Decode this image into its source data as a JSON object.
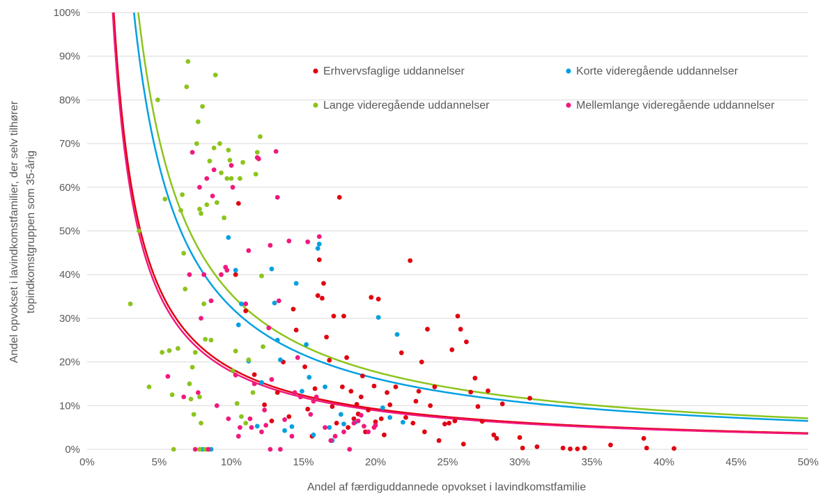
{
  "chart_data": {
    "type": "scatter",
    "xlabel": "Andel af færdiguddannede opvokset i lavindkomstfamilie",
    "ylabel_line1": "Andel opvokset i lavindkomstfamilier, der selv tilhører",
    "ylabel_line2": "topindkomstgruppen som 35-årig",
    "xlim": [
      0,
      0.5
    ],
    "ylim": [
      0,
      1
    ],
    "x_ticks": [
      0,
      0.05,
      0.1,
      0.15,
      0.2,
      0.25,
      0.3,
      0.35,
      0.4,
      0.45,
      0.5
    ],
    "x_tick_labels": [
      "0%",
      "5%",
      "10%",
      "15%",
      "20%",
      "25%",
      "30%",
      "35%",
      "40%",
      "45%",
      "50%"
    ],
    "y_ticks": [
      0,
      0.1,
      0.2,
      0.3,
      0.4,
      0.5,
      0.6,
      0.7,
      0.8,
      0.9,
      1.0
    ],
    "y_tick_labels": [
      "0%",
      "10%",
      "20%",
      "30%",
      "40%",
      "50%",
      "60%",
      "70%",
      "80%",
      "90%",
      "100%"
    ],
    "grid": "horizontal",
    "legend_position": "top-right inside plot",
    "series": [
      {
        "name": "Erhvervsfaglige uddannelser",
        "color": "#E10010",
        "trend_k": 0.0185,
        "points": [
          [
            0.103,
            0.4
          ],
          [
            0.105,
            0.563
          ],
          [
            0.11,
            0.317
          ],
          [
            0.116,
            0.171
          ],
          [
            0.123,
            0.102
          ],
          [
            0.128,
            0.065
          ],
          [
            0.132,
            0.13
          ],
          [
            0.136,
            0.2
          ],
          [
            0.14,
            0.075
          ],
          [
            0.143,
            0.321
          ],
          [
            0.145,
            0.273
          ],
          [
            0.148,
            0.12
          ],
          [
            0.151,
            0.189
          ],
          [
            0.153,
            0.092
          ],
          [
            0.156,
            0.03
          ],
          [
            0.158,
            0.139
          ],
          [
            0.16,
            0.352
          ],
          [
            0.161,
            0.434
          ],
          [
            0.163,
            0.346
          ],
          [
            0.164,
            0.38
          ],
          [
            0.166,
            0.257
          ],
          [
            0.168,
            0.204
          ],
          [
            0.17,
            0.098
          ],
          [
            0.171,
            0.305
          ],
          [
            0.173,
            0.06
          ],
          [
            0.175,
            0.577
          ],
          [
            0.177,
            0.143
          ],
          [
            0.178,
            0.305
          ],
          [
            0.18,
            0.21
          ],
          [
            0.181,
            0.05
          ],
          [
            0.183,
            0.133
          ],
          [
            0.185,
            0.07
          ],
          [
            0.187,
            0.103
          ],
          [
            0.188,
            0.081
          ],
          [
            0.19,
            0.12
          ],
          [
            0.191,
            0.168
          ],
          [
            0.193,
            0.04
          ],
          [
            0.195,
            0.09
          ],
          [
            0.197,
            0.348
          ],
          [
            0.199,
            0.145
          ],
          [
            0.2,
            0.063
          ],
          [
            0.202,
            0.344
          ],
          [
            0.204,
            0.07
          ],
          [
            0.206,
            0.033
          ],
          [
            0.208,
            0.13
          ],
          [
            0.21,
            0.102
          ],
          [
            0.214,
            0.143
          ],
          [
            0.218,
            0.221
          ],
          [
            0.221,
            0.073
          ],
          [
            0.224,
            0.432
          ],
          [
            0.226,
            0.06
          ],
          [
            0.228,
            0.11
          ],
          [
            0.23,
            0.133
          ],
          [
            0.232,
            0.2
          ],
          [
            0.234,
            0.04
          ],
          [
            0.236,
            0.275
          ],
          [
            0.238,
            0.1
          ],
          [
            0.241,
            0.143
          ],
          [
            0.244,
            0.02
          ],
          [
            0.248,
            0.058
          ],
          [
            0.251,
            0.06
          ],
          [
            0.253,
            0.228
          ],
          [
            0.255,
            0.065
          ],
          [
            0.257,
            0.305
          ],
          [
            0.259,
            0.275
          ],
          [
            0.261,
            0.012
          ],
          [
            0.263,
            0.246
          ],
          [
            0.266,
            0.131
          ],
          [
            0.269,
            0.163
          ],
          [
            0.271,
            0.098
          ],
          [
            0.274,
            0.064
          ],
          [
            0.278,
            0.134
          ],
          [
            0.282,
            0.033
          ],
          [
            0.284,
            0.025
          ],
          [
            0.288,
            0.104
          ],
          [
            0.3,
            0.027
          ],
          [
            0.302,
            0.003
          ],
          [
            0.307,
            0.117
          ],
          [
            0.312,
            0.006
          ],
          [
            0.33,
            0.003
          ],
          [
            0.335,
            0.001
          ],
          [
            0.34,
            0.001
          ],
          [
            0.345,
            0.003
          ],
          [
            0.363,
            0.01
          ],
          [
            0.386,
            0.025
          ],
          [
            0.388,
            0.003
          ],
          [
            0.407,
            0.002
          ]
        ]
      },
      {
        "name": "Korte videregående uddannelser",
        "color": "#00A0E1",
        "trend_k": 0.0325,
        "points": [
          [
            0.098,
            0.485
          ],
          [
            0.103,
            0.41
          ],
          [
            0.105,
            0.285
          ],
          [
            0.107,
            0.333
          ],
          [
            0.112,
            0.202
          ],
          [
            0.118,
            0.053
          ],
          [
            0.121,
            0.153
          ],
          [
            0.128,
            0.413
          ],
          [
            0.13,
            0.335
          ],
          [
            0.132,
            0.25
          ],
          [
            0.134,
            0.205
          ],
          [
            0.137,
            0.043
          ],
          [
            0.142,
            0.052
          ],
          [
            0.145,
            0.38
          ],
          [
            0.149,
            0.133
          ],
          [
            0.152,
            0.24
          ],
          [
            0.154,
            0.165
          ],
          [
            0.157,
            0.033
          ],
          [
            0.16,
            0.46
          ],
          [
            0.161,
            0.47
          ],
          [
            0.165,
            0.143
          ],
          [
            0.168,
            0.05
          ],
          [
            0.17,
            0.02
          ],
          [
            0.176,
            0.08
          ],
          [
            0.178,
            0.058
          ],
          [
            0.186,
            0.062
          ],
          [
            0.202,
            0.302
          ],
          [
            0.205,
            0.095
          ],
          [
            0.21,
            0.073
          ],
          [
            0.215,
            0.263
          ],
          [
            0.219,
            0.062
          ],
          [
            0.08,
            0.0
          ],
          [
            0.086,
            0.0
          ]
        ]
      },
      {
        "name": "Lange videregående uddannelser",
        "color": "#8CC41C",
        "trend_k": 0.0355,
        "points": [
          [
            0.03,
            0.333
          ],
          [
            0.036,
            0.5
          ],
          [
            0.043,
            0.143
          ],
          [
            0.049,
            0.8
          ],
          [
            0.052,
            0.222
          ],
          [
            0.054,
            0.573
          ],
          [
            0.057,
            0.226
          ],
          [
            0.059,
            0.125
          ],
          [
            0.063,
            0.231
          ],
          [
            0.065,
            0.547
          ],
          [
            0.066,
            0.583
          ],
          [
            0.067,
            0.449
          ],
          [
            0.068,
            0.367
          ],
          [
            0.069,
            0.83
          ],
          [
            0.07,
            0.888
          ],
          [
            0.071,
            0.15
          ],
          [
            0.072,
            0.115
          ],
          [
            0.073,
            0.188
          ],
          [
            0.074,
            0.08
          ],
          [
            0.075,
            0.222
          ],
          [
            0.076,
            0.7
          ],
          [
            0.077,
            0.75
          ],
          [
            0.078,
            0.55
          ],
          [
            0.079,
            0.54
          ],
          [
            0.08,
            0.785
          ],
          [
            0.081,
            0.333
          ],
          [
            0.082,
            0.252
          ],
          [
            0.083,
            0.56
          ],
          [
            0.085,
            0.66
          ],
          [
            0.086,
            0.25
          ],
          [
            0.088,
            0.69
          ],
          [
            0.089,
            0.857
          ],
          [
            0.09,
            0.565
          ],
          [
            0.092,
            0.7
          ],
          [
            0.093,
            0.633
          ],
          [
            0.095,
            0.53
          ],
          [
            0.097,
            0.62
          ],
          [
            0.098,
            0.685
          ],
          [
            0.099,
            0.662
          ],
          [
            0.1,
            0.62
          ],
          [
            0.101,
            0.18
          ],
          [
            0.103,
            0.225
          ],
          [
            0.104,
            0.105
          ],
          [
            0.106,
            0.62
          ],
          [
            0.107,
            0.075
          ],
          [
            0.108,
            0.657
          ],
          [
            0.11,
            0.06
          ],
          [
            0.112,
            0.205
          ],
          [
            0.115,
            0.13
          ],
          [
            0.117,
            0.63
          ],
          [
            0.118,
            0.68
          ],
          [
            0.12,
            0.716
          ],
          [
            0.121,
            0.397
          ],
          [
            0.122,
            0.235
          ],
          [
            0.078,
            0.12
          ],
          [
            0.079,
            0.06
          ],
          [
            0.082,
            0.0
          ],
          [
            0.084,
            0.0
          ],
          [
            0.06,
            0.0
          ],
          [
            0.078,
            0.0
          ]
        ]
      },
      {
        "name": "Mellemlange videregående uddannelser",
        "color": "#F0197D",
        "trend_k": 0.0178,
        "points": [
          [
            0.056,
            0.167
          ],
          [
            0.067,
            0.12
          ],
          [
            0.071,
            0.4
          ],
          [
            0.073,
            0.68
          ],
          [
            0.075,
            0.0
          ],
          [
            0.077,
            0.13
          ],
          [
            0.078,
            0.6
          ],
          [
            0.079,
            0.3
          ],
          [
            0.081,
            0.4
          ],
          [
            0.083,
            0.62
          ],
          [
            0.084,
            0.0
          ],
          [
            0.086,
            0.34
          ],
          [
            0.087,
            0.58
          ],
          [
            0.088,
            0.64
          ],
          [
            0.09,
            0.1
          ],
          [
            0.093,
            0.4
          ],
          [
            0.096,
            0.417
          ],
          [
            0.097,
            0.41
          ],
          [
            0.098,
            0.07
          ],
          [
            0.1,
            0.65
          ],
          [
            0.101,
            0.6
          ],
          [
            0.103,
            0.17
          ],
          [
            0.105,
            0.03
          ],
          [
            0.106,
            0.05
          ],
          [
            0.11,
            0.333
          ],
          [
            0.112,
            0.455
          ],
          [
            0.113,
            0.07
          ],
          [
            0.114,
            0.05
          ],
          [
            0.116,
            0.15
          ],
          [
            0.118,
            0.668
          ],
          [
            0.119,
            0.665
          ],
          [
            0.121,
            0.04
          ],
          [
            0.123,
            0.09
          ],
          [
            0.124,
            0.055
          ],
          [
            0.126,
            0.278
          ],
          [
            0.127,
            0.467
          ],
          [
            0.128,
            0.16
          ],
          [
            0.131,
            0.682
          ],
          [
            0.132,
            0.577
          ],
          [
            0.133,
            0.34
          ],
          [
            0.137,
            0.068
          ],
          [
            0.14,
            0.477
          ],
          [
            0.142,
            0.03
          ],
          [
            0.144,
            0.13
          ],
          [
            0.146,
            0.21
          ],
          [
            0.148,
            0.12
          ],
          [
            0.153,
            0.475
          ],
          [
            0.155,
            0.08
          ],
          [
            0.157,
            0.11
          ],
          [
            0.159,
            0.12
          ],
          [
            0.161,
            0.487
          ],
          [
            0.165,
            0.05
          ],
          [
            0.169,
            0.02
          ],
          [
            0.172,
            0.03
          ],
          [
            0.178,
            0.04
          ],
          [
            0.182,
            0.0
          ],
          [
            0.185,
            0.06
          ],
          [
            0.188,
            0.065
          ],
          [
            0.19,
            0.078
          ],
          [
            0.192,
            0.053
          ],
          [
            0.195,
            0.04
          ],
          [
            0.199,
            0.05
          ],
          [
            0.2,
            0.055
          ],
          [
            0.134,
            0.0
          ],
          [
            0.127,
            0.0
          ]
        ]
      }
    ]
  }
}
